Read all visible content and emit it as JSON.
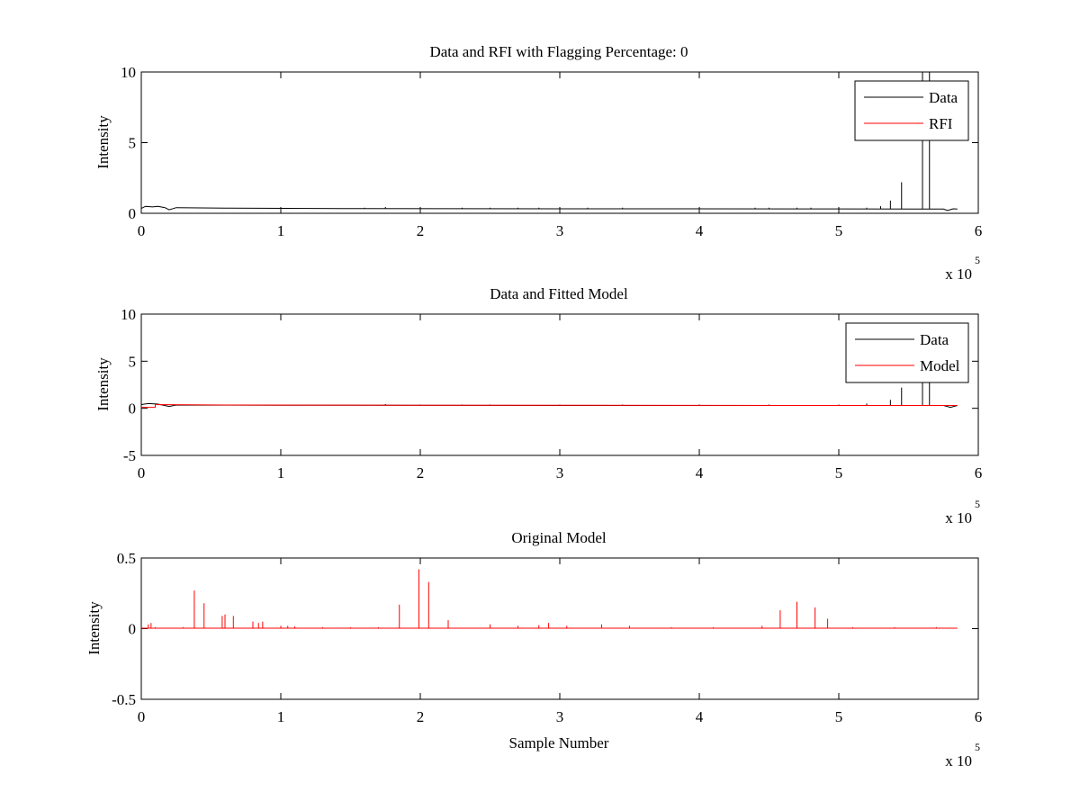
{
  "chart_data": [
    {
      "type": "line",
      "title": "Data and RFI with Flagging Percentage: 0",
      "xlabel": "",
      "ylabel": "Intensity",
      "xlim": [
        0,
        600000
      ],
      "ylim": [
        0,
        10
      ],
      "xticks": [
        0,
        1,
        2,
        3,
        4,
        5,
        6
      ],
      "yticks": [
        0,
        5,
        10
      ],
      "x_multiplier": "x 10",
      "x_exponent": "5",
      "legend_position": "top-right",
      "grid": false,
      "series": [
        {
          "name": "Data",
          "color": "#000000",
          "baseline": [
            [
              0,
              0.35
            ],
            [
              3000,
              0.5
            ],
            [
              8000,
              0.45
            ],
            [
              12000,
              0.5
            ],
            [
              17000,
              0.4
            ],
            [
              20000,
              0.25
            ],
            [
              25000,
              0.4
            ],
            [
              60000,
              0.37
            ],
            [
              150000,
              0.33
            ],
            [
              300000,
              0.32
            ],
            [
              500000,
              0.31
            ],
            [
              560000,
              0.3
            ],
            [
              575000,
              0.3
            ],
            [
              578000,
              0.2
            ],
            [
              582000,
              0.32
            ],
            [
              585000,
              0.3
            ]
          ],
          "spikes": [
            [
              100000,
              0.4
            ],
            [
              160000,
              0.4
            ],
            [
              175000,
              0.45
            ],
            [
              200000,
              0.4
            ],
            [
              230000,
              0.4
            ],
            [
              250000,
              0.4
            ],
            [
              270000,
              0.4
            ],
            [
              285000,
              0.4
            ],
            [
              300000,
              0.4
            ],
            [
              320000,
              0.4
            ],
            [
              345000,
              0.4
            ],
            [
              400000,
              0.4
            ],
            [
              440000,
              0.4
            ],
            [
              450000,
              0.4
            ],
            [
              470000,
              0.4
            ],
            [
              480000,
              0.4
            ],
            [
              500000,
              0.4
            ],
            [
              520000,
              0.4
            ],
            [
              530000,
              0.5
            ],
            [
              537000,
              0.9
            ],
            [
              545000,
              2.2
            ],
            [
              560000,
              10
            ],
            [
              565000,
              10
            ]
          ]
        },
        {
          "name": "RFI",
          "color": "#ff0000",
          "baseline": [],
          "spikes": []
        }
      ]
    },
    {
      "type": "line",
      "title": "Data and Fitted Model",
      "xlabel": "",
      "ylabel": "Intensity",
      "xlim": [
        0,
        600000
      ],
      "ylim": [
        -5,
        10
      ],
      "xticks": [
        0,
        1,
        2,
        3,
        4,
        5,
        6
      ],
      "yticks": [
        -5,
        0,
        5,
        10
      ],
      "x_multiplier": "x 10",
      "x_exponent": "5",
      "legend_position": "top-right",
      "grid": false,
      "series": [
        {
          "name": "Data",
          "color": "#000000",
          "baseline": [
            [
              0,
              0.4
            ],
            [
              5000,
              0.5
            ],
            [
              12000,
              0.45
            ],
            [
              20000,
              0.2
            ],
            [
              25000,
              0.35
            ],
            [
              100000,
              0.33
            ],
            [
              300000,
              0.3
            ],
            [
              560000,
              0.3
            ],
            [
              575000,
              0.3
            ],
            [
              580000,
              0.1
            ],
            [
              585000,
              0.3
            ]
          ],
          "spikes": [
            [
              100000,
              0.4
            ],
            [
              175000,
              0.45
            ],
            [
              200000,
              0.4
            ],
            [
              230000,
              0.4
            ],
            [
              250000,
              0.4
            ],
            [
              300000,
              0.4
            ],
            [
              345000,
              0.4
            ],
            [
              400000,
              0.4
            ],
            [
              450000,
              0.4
            ],
            [
              500000,
              0.4
            ],
            [
              520000,
              0.5
            ],
            [
              537000,
              0.9
            ],
            [
              545000,
              2.2
            ],
            [
              560000,
              5
            ],
            [
              565000,
              5
            ]
          ]
        },
        {
          "name": "Model",
          "color": "#ff0000",
          "baseline": [
            [
              0,
              0.1
            ],
            [
              10000,
              0.1
            ],
            [
              10000,
              0.4
            ],
            [
              60000,
              0.35
            ],
            [
              200000,
              0.33
            ],
            [
              400000,
              0.31
            ],
            [
              580000,
              0.3
            ],
            [
              585000,
              0.3
            ]
          ],
          "spikes": []
        }
      ]
    },
    {
      "type": "line",
      "title": "Original Model",
      "xlabel": "Sample Number",
      "ylabel": "Intensity",
      "xlim": [
        0,
        600000
      ],
      "ylim": [
        -0.5,
        0.5
      ],
      "xticks": [
        0,
        1,
        2,
        3,
        4,
        5,
        6
      ],
      "yticks": [
        -0.5,
        0,
        0.5
      ],
      "x_multiplier": "x 10",
      "x_exponent": "5",
      "legend_position": "",
      "grid": false,
      "series": [
        {
          "name": "",
          "color": "#ff0000",
          "baseline": [
            [
              0,
              0.003
            ],
            [
              585000,
              0.003
            ]
          ],
          "spikes": [
            [
              5000,
              0.03
            ],
            [
              7000,
              0.04
            ],
            [
              10000,
              0.01
            ],
            [
              30000,
              0.01
            ],
            [
              38000,
              0.27
            ],
            [
              45000,
              0.18
            ],
            [
              58000,
              0.09
            ],
            [
              60000,
              0.1
            ],
            [
              66000,
              0.09
            ],
            [
              80000,
              0.05
            ],
            [
              84000,
              0.04
            ],
            [
              87000,
              0.05
            ],
            [
              100000,
              0.02
            ],
            [
              105000,
              0.02
            ],
            [
              110000,
              0.015
            ],
            [
              130000,
              0.01
            ],
            [
              150000,
              0.01
            ],
            [
              170000,
              0.01
            ],
            [
              185000,
              0.17
            ],
            [
              199000,
              0.42
            ],
            [
              206000,
              0.33
            ],
            [
              220000,
              0.06
            ],
            [
              250000,
              0.03
            ],
            [
              270000,
              0.02
            ],
            [
              285000,
              0.025
            ],
            [
              292000,
              0.04
            ],
            [
              305000,
              0.02
            ],
            [
              330000,
              0.03
            ],
            [
              350000,
              0.02
            ],
            [
              380000,
              0.01
            ],
            [
              410000,
              0.01
            ],
            [
              445000,
              0.02
            ],
            [
              458000,
              0.13
            ],
            [
              470000,
              0.19
            ],
            [
              483000,
              0.15
            ],
            [
              492000,
              0.07
            ],
            [
              510000,
              0.01
            ],
            [
              540000,
              0.01
            ],
            [
              570000,
              0.01
            ]
          ]
        }
      ]
    }
  ]
}
